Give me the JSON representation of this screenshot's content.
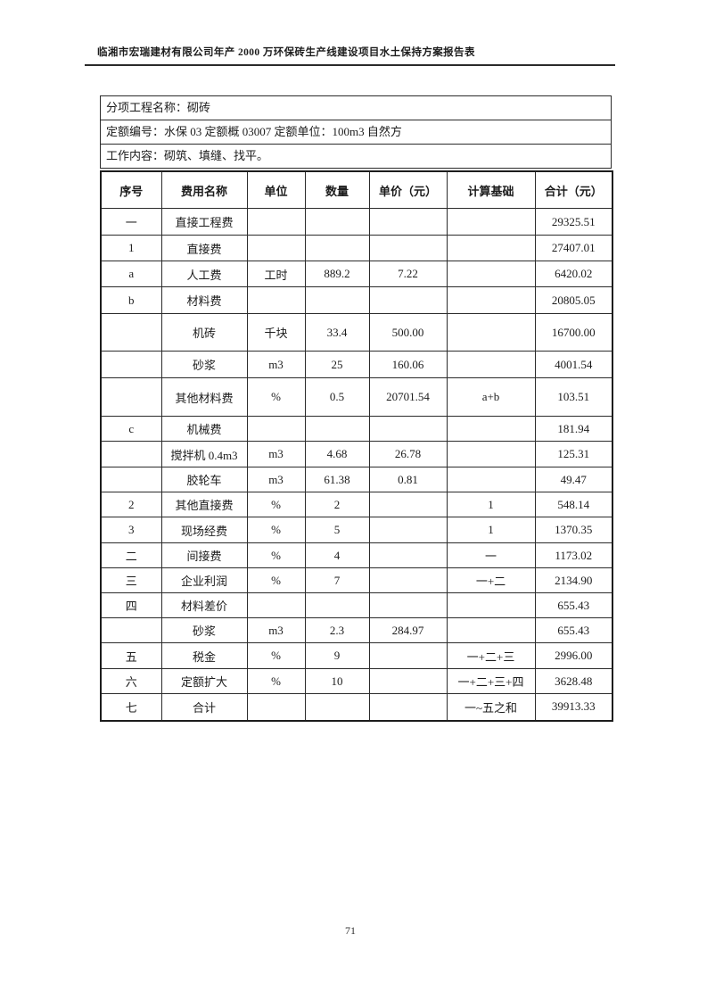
{
  "page": {
    "header_title": "临湘市宏瑞建材有限公司年产 2000 万环保砖生产线建设项目水土保持方案报告表",
    "page_number": "71"
  },
  "info": {
    "rows": [
      "分项工程名称：砌砖",
      "定额编号：水保 03 定额概 03007 定额单位：100m3 自然方",
      "工作内容：砌筑、填缝、找平。"
    ]
  },
  "table": {
    "columns": [
      "序号",
      "费用名称",
      "单位",
      "数量",
      "单价（元）",
      "计算基础",
      "合计（元）"
    ],
    "rows": [
      [
        "一",
        "直接工程费",
        "",
        "",
        "",
        "",
        "29325.51"
      ],
      [
        "1",
        "直接费",
        "",
        "",
        "",
        "",
        "27407.01"
      ],
      [
        "a",
        "人工费",
        "工时",
        "889.2",
        "7.22",
        "",
        "6420.02"
      ],
      [
        "b",
        "材料费",
        "",
        "",
        "",
        "",
        "20805.05"
      ],
      [
        "",
        "机砖",
        "千块",
        "33.4",
        "500.00",
        "",
        "16700.00"
      ],
      [
        "",
        "砂浆",
        "m3",
        "25",
        "160.06",
        "",
        "4001.54"
      ],
      [
        "",
        "其他材料费",
        "%",
        "0.5",
        "20701.54",
        "a+b",
        "103.51"
      ],
      [
        "c",
        "机械费",
        "",
        "",
        "",
        "",
        "181.94"
      ],
      [
        "",
        "搅拌机 0.4m3",
        "m3",
        "4.68",
        "26.78",
        "",
        "125.31"
      ],
      [
        "",
        "胶轮车",
        "m3",
        "61.38",
        "0.81",
        "",
        "49.47"
      ],
      [
        "2",
        "其他直接费",
        "%",
        "2",
        "",
        "1",
        "548.14"
      ],
      [
        "3",
        "现场经费",
        "%",
        "5",
        "",
        "1",
        "1370.35"
      ],
      [
        "二",
        "间接费",
        "%",
        "4",
        "",
        "一",
        "1173.02"
      ],
      [
        "三",
        "企业利润",
        "%",
        "7",
        "",
        "一+二",
        "2134.90"
      ],
      [
        "四",
        "材料差价",
        "",
        "",
        "",
        "",
        "655.43"
      ],
      [
        "",
        "砂浆",
        "m3",
        "2.3",
        "284.97",
        "",
        "655.43"
      ],
      [
        "五",
        "税金",
        "%",
        "9",
        "",
        "一+二+三",
        "2996.00"
      ],
      [
        "六",
        "定额扩大",
        "%",
        "10",
        "",
        "一+二+三+四",
        "3628.48"
      ],
      [
        "七",
        "合计",
        "",
        "",
        "",
        "一~五之和",
        "39913.33"
      ]
    ]
  }
}
